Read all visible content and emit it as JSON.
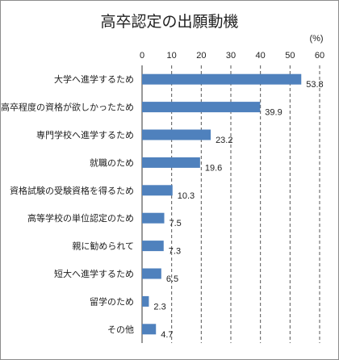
{
  "chart_data": {
    "type": "bar",
    "orientation": "horizontal",
    "title": "高卒認定の出願動機",
    "unit": "(%)",
    "xlim": [
      0,
      60
    ],
    "ticks": [
      "0",
      "10",
      "20",
      "30",
      "40",
      "50",
      "60"
    ],
    "grid": "vertical dashed",
    "bar_color": "#4f81bd",
    "categories": [
      "大学へ進学するため",
      "高卒程度の資格が欲しかったため",
      "専門学校へ進学するため",
      "就職のため",
      "資格試験の受験資格を得るため",
      "高等学校の単位認定のため",
      "親に勧められて",
      "短大へ進学するため",
      "留学のため",
      "その他"
    ],
    "values": [
      53.8,
      39.9,
      23.2,
      19.6,
      10.3,
      7.5,
      7.3,
      6.5,
      2.3,
      4.7
    ],
    "value_labels": [
      "53.8",
      "39.9",
      "23.2",
      "19.6",
      "10.3",
      "7.5",
      "7.3",
      "6.5",
      "2.3",
      "4.7"
    ]
  }
}
